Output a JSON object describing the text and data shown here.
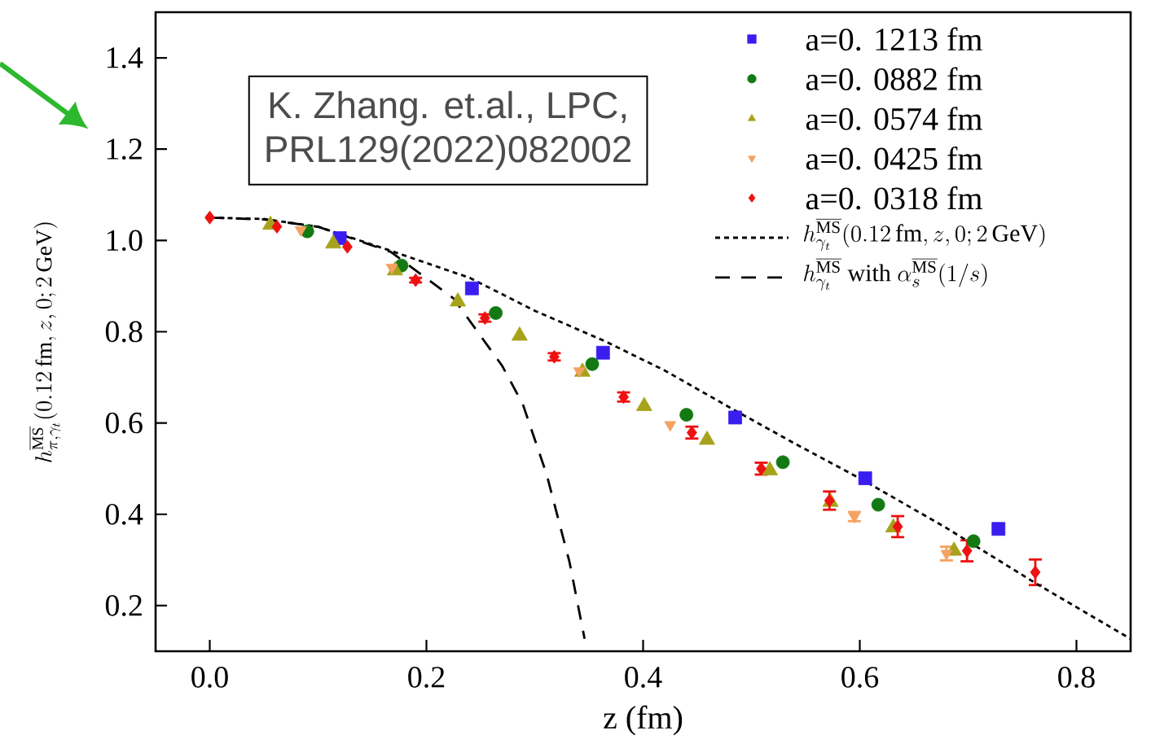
{
  "chart_data": {
    "type": "scatter",
    "xlabel": "z (fm)",
    "ylabel": "h^{\\overline{\\mathrm{MS}}}_{\\pi,\\gamma_t}(0.12\\,\\mathrm{fm}, z, 0; 2\\,\\mathrm{GeV})",
    "annotations": [
      "K. Zhang. et.al., LPC,",
      "PRL129(2022)082002"
    ],
    "xlim": [
      -0.05,
      0.85
    ],
    "ylim": [
      0.1,
      1.5
    ],
    "xticks": [
      {
        "value": 0,
        "label": "0.0"
      },
      0.2,
      0.4,
      0.6,
      0.8
    ],
    "yticks": [
      0.2,
      0.4,
      0.6,
      0.8,
      {
        "value": 1,
        "label": "1.0"
      },
      1.2,
      1.4
    ],
    "legend": "top right",
    "series": [
      {
        "name": "a=0. 1213 fm",
        "color": "#3a1ef0",
        "marker": "square",
        "x": [
          0.12,
          0.242,
          0.363,
          0.485,
          0.605,
          0.728
        ],
        "values": [
          1.005,
          0.895,
          0.754,
          0.612,
          0.479,
          0.368
        ]
      },
      {
        "name": "a=0. 0882 fm",
        "color": "#137a13",
        "marker": "circle",
        "x": [
          0.09,
          0.177,
          0.264,
          0.353,
          0.44,
          0.529,
          0.617,
          0.705
        ],
        "values": [
          1.02,
          0.945,
          0.841,
          0.729,
          0.618,
          0.514,
          0.421,
          0.341
        ]
      },
      {
        "name": "a=0. 0574 fm",
        "color": "#a8a21a",
        "marker": "triangle",
        "x": [
          0.056,
          0.114,
          0.171,
          0.229,
          0.286,
          0.344,
          0.401,
          0.459,
          0.517,
          0.573,
          0.631,
          0.687
        ],
        "values": [
          1.034,
          0.993,
          0.934,
          0.866,
          0.791,
          0.712,
          0.637,
          0.563,
          0.496,
          0.427,
          0.371,
          0.32
        ]
      },
      {
        "name": "a=0. 0425 fm",
        "color": "#f4a262",
        "marker": "triangle-down",
        "x": [
          0.084,
          0.168,
          0.341,
          0.425,
          0.595,
          0.68
        ],
        "values": [
          1.023,
          0.941,
          0.714,
          0.596,
          0.395,
          0.314
        ],
        "errors": [
          null,
          null,
          null,
          null,
          0.01,
          0.015
        ]
      },
      {
        "name": "a=0. 0318 fm",
        "color": "#ee1111",
        "marker": "diamond",
        "x": [
          0.0,
          0.062,
          0.127,
          0.19,
          0.254,
          0.318,
          0.382,
          0.445,
          0.509,
          0.572,
          0.635,
          0.699,
          0.762
        ],
        "values": [
          1.05,
          1.03,
          0.986,
          0.913,
          0.83,
          0.745,
          0.657,
          0.579,
          0.5,
          0.43,
          0.373,
          0.32,
          0.273
        ],
        "errors": [
          null,
          null,
          null,
          0.005,
          0.008,
          0.008,
          0.01,
          0.013,
          0.013,
          0.02,
          0.023,
          0.023,
          0.028
        ]
      },
      {
        "name": "h^{\\overline{\\mathrm{MS}}}_{\\gamma_t}(0.12\\,\\mathrm{fm}, z, 0; 2\\,\\mathrm{GeV})",
        "type": "line",
        "line_style": "dotted",
        "color": "#000000",
        "x": [
          0.0,
          0.05,
          0.1,
          0.165,
          0.24,
          0.3,
          0.365,
          0.42,
          0.483,
          0.54,
          0.603,
          0.68,
          0.763,
          0.85
        ],
        "values": [
          1.05,
          1.047,
          1.03,
          0.979,
          0.918,
          0.846,
          0.779,
          0.715,
          0.63,
          0.555,
          0.475,
          0.37,
          0.248,
          0.127
        ]
      },
      {
        "name": "h^{\\overline{\\mathrm{MS}}}_{\\gamma_t}\\ \\mathrm{with}\\ \\alpha_s^{\\overline{\\mathrm{MS}}}(1/s)",
        "type": "line",
        "line_style": "dashed",
        "color": "#000000",
        "x": [
          0.0,
          0.05,
          0.1,
          0.167,
          0.225,
          0.27,
          0.289,
          0.311,
          0.332,
          0.346
        ],
        "values": [
          1.05,
          1.046,
          1.03,
          0.975,
          0.873,
          0.725,
          0.641,
          0.487,
          0.296,
          0.127
        ]
      }
    ]
  }
}
